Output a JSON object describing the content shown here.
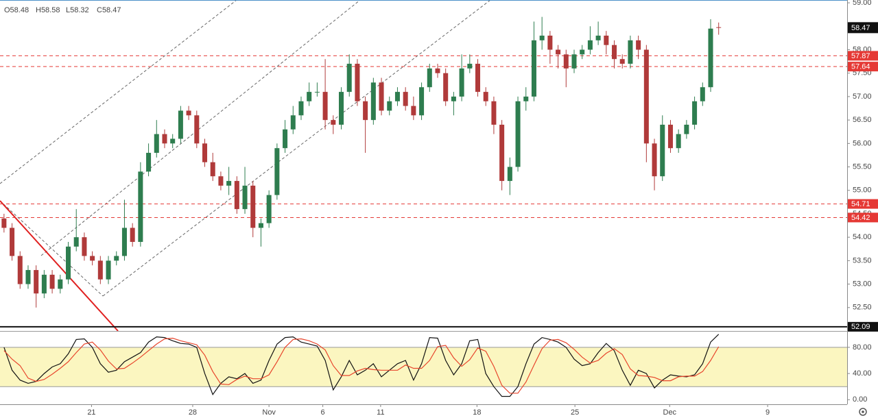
{
  "chart_data": [
    {
      "type": "candlestick",
      "ohlc_header": [
        "O58.48",
        "H58.58",
        "L58.32",
        "C58.47"
      ],
      "up_color": "#2e7d4f",
      "down_color": "#b03a3a",
      "open": [
        54.4,
        54.2,
        53.6,
        53.0,
        53.3,
        52.8,
        53.2,
        52.9,
        53.1,
        53.8,
        54.0,
        53.6,
        53.5,
        53.1,
        53.5,
        53.6,
        54.2,
        53.9,
        55.4,
        55.8,
        56.2,
        56.0,
        56.1,
        56.7,
        56.6,
        56.0,
        55.6,
        55.3,
        55.1,
        55.2,
        54.6,
        55.1,
        54.2,
        54.3,
        54.9,
        55.9,
        56.3,
        56.6,
        56.9,
        57.1,
        57.1,
        56.5,
        56.4,
        57.1,
        57.7,
        56.9,
        56.5,
        57.3,
        56.7,
        56.9,
        57.1,
        56.8,
        56.6,
        57.2,
        57.6,
        57.5,
        56.9,
        57.0,
        57.6,
        57.7,
        57.1,
        56.9,
        56.4,
        55.2,
        55.5,
        56.9,
        57.0,
        58.2,
        58.3,
        58.0,
        57.9,
        57.6,
        57.9,
        58.0,
        58.2,
        58.3,
        58.1,
        57.8,
        57.7,
        58.2,
        58.0,
        56.0,
        55.3,
        56.4,
        55.9,
        56.2,
        56.4,
        56.9,
        57.2,
        58.48
      ],
      "high": [
        54.5,
        54.3,
        53.7,
        53.4,
        53.4,
        53.3,
        53.3,
        53.2,
        53.9,
        54.6,
        54.1,
        53.7,
        53.6,
        53.6,
        53.7,
        54.8,
        54.3,
        55.6,
        56.0,
        56.5,
        56.3,
        56.2,
        56.8,
        56.8,
        56.7,
        56.1,
        55.8,
        55.4,
        55.5,
        55.3,
        55.5,
        55.2,
        54.4,
        55.0,
        56.0,
        56.5,
        56.8,
        57.0,
        57.3,
        57.3,
        57.8,
        56.6,
        57.2,
        57.9,
        57.8,
        57.0,
        57.4,
        57.4,
        57.0,
        57.2,
        57.2,
        57.0,
        57.3,
        57.7,
        57.7,
        57.6,
        57.1,
        57.9,
        57.9,
        57.8,
        57.2,
        57.0,
        56.5,
        55.7,
        57.0,
        57.2,
        58.6,
        58.7,
        58.4,
        58.1,
        58.0,
        58.0,
        58.1,
        58.5,
        58.6,
        58.4,
        58.2,
        57.9,
        58.3,
        58.3,
        58.1,
        56.1,
        56.6,
        56.5,
        56.3,
        56.5,
        57.0,
        57.3,
        58.65,
        58.58
      ],
      "low": [
        54.1,
        53.5,
        52.9,
        52.9,
        52.5,
        52.7,
        52.8,
        52.8,
        53.0,
        53.7,
        53.5,
        53.4,
        53.0,
        53.0,
        53.4,
        53.5,
        53.8,
        53.8,
        55.3,
        55.7,
        55.9,
        55.9,
        56.0,
        56.5,
        55.9,
        55.5,
        55.2,
        55.0,
        54.9,
        54.5,
        54.5,
        54.0,
        53.8,
        54.2,
        54.8,
        55.8,
        56.2,
        56.5,
        56.8,
        57.0,
        56.3,
        56.2,
        56.3,
        57.0,
        56.8,
        55.8,
        56.4,
        56.6,
        56.6,
        56.8,
        56.7,
        56.5,
        56.5,
        57.1,
        57.4,
        56.8,
        56.6,
        56.9,
        57.5,
        57.0,
        56.8,
        56.2,
        55.0,
        54.9,
        55.4,
        56.7,
        56.9,
        58.0,
        57.7,
        57.6,
        57.2,
        57.5,
        57.8,
        57.9,
        58.1,
        57.9,
        57.6,
        57.6,
        57.6,
        57.8,
        55.6,
        55.0,
        55.2,
        55.8,
        55.8,
        56.1,
        56.3,
        56.8,
        57.1,
        58.32
      ],
      "close": [
        54.2,
        53.6,
        53.0,
        53.3,
        52.8,
        53.2,
        52.9,
        53.1,
        53.8,
        54.0,
        53.6,
        53.5,
        53.1,
        53.5,
        53.6,
        54.2,
        53.9,
        55.4,
        55.8,
        56.2,
        56.0,
        56.1,
        56.7,
        56.6,
        56.0,
        55.6,
        55.3,
        55.1,
        55.2,
        54.6,
        55.1,
        54.2,
        54.3,
        54.9,
        55.9,
        56.3,
        56.6,
        56.9,
        57.1,
        57.1,
        56.5,
        56.4,
        57.1,
        57.7,
        56.9,
        56.5,
        57.3,
        56.7,
        56.9,
        57.1,
        56.8,
        56.6,
        57.2,
        57.6,
        57.5,
        56.9,
        57.0,
        57.6,
        57.7,
        57.1,
        56.9,
        56.4,
        55.2,
        55.5,
        56.9,
        57.0,
        58.2,
        58.3,
        58.0,
        57.9,
        57.6,
        57.9,
        58.0,
        58.2,
        58.3,
        58.1,
        57.8,
        57.7,
        58.2,
        58.0,
        56.0,
        55.3,
        56.4,
        55.9,
        56.2,
        56.4,
        56.9,
        57.2,
        58.45,
        58.47
      ],
      "levels": [
        {
          "value": 57.87,
          "color": "#e53935",
          "style": "dashed"
        },
        {
          "value": 57.64,
          "color": "#e53935",
          "style": "dashed"
        },
        {
          "value": 54.71,
          "color": "#e53935",
          "style": "dashed"
        },
        {
          "value": 54.42,
          "color": "#e53935",
          "style": "dashed"
        },
        {
          "value": 52.09,
          "color": "#111111",
          "style": "solid"
        }
      ],
      "xlim": [
        -0.5,
        105
      ],
      "xticks": [
        {
          "value": 10.9,
          "label": "21"
        },
        {
          "value": 23.5,
          "label": "28"
        },
        {
          "value": 33.0,
          "label": "Nov"
        },
        {
          "value": 39.7,
          "label": "6"
        },
        {
          "value": 46.9,
          "label": "11"
        },
        {
          "value": 58.9,
          "label": "18"
        },
        {
          "value": 71.1,
          "label": "25"
        },
        {
          "value": 82.9,
          "label": "Dec"
        },
        {
          "value": 95.1,
          "label": "9"
        }
      ],
      "ylim": [
        52.0,
        59.06
      ],
      "yticks": [
        {
          "value": 52.5,
          "label": "52.50"
        },
        {
          "value": 53,
          "label": "53.00"
        },
        {
          "value": 53.5,
          "label": "53.50"
        },
        {
          "value": 54,
          "label": "54.00"
        },
        {
          "value": 54.5,
          "label": "54.50"
        },
        {
          "value": 55,
          "label": "55.00"
        },
        {
          "value": 55.5,
          "label": "55.50"
        },
        {
          "value": 56,
          "label": "56.00"
        },
        {
          "value": 56.5,
          "label": "56.50"
        },
        {
          "value": 57,
          "label": "57.00"
        },
        {
          "value": 57.5,
          "label": "57.50"
        },
        {
          "value": 58,
          "label": "58.00"
        },
        {
          "value": 58.5,
          "label": "58.50"
        },
        {
          "value": 59,
          "label": "59.00"
        }
      ]
    },
    {
      "type": "line",
      "band": [
        20,
        80
      ],
      "band_color": "#fbf6c0",
      "series": [
        {
          "color": "#111111",
          "values": [
            80,
            45,
            30,
            25,
            28,
            40,
            50,
            55,
            70,
            92,
            93,
            80,
            55,
            42,
            45,
            58,
            65,
            72,
            88,
            96,
            95,
            90,
            86,
            85,
            80,
            40,
            8,
            25,
            35,
            32,
            40,
            25,
            30,
            60,
            85,
            95,
            96,
            88,
            85,
            82,
            60,
            15,
            35,
            60,
            38,
            45,
            55,
            35,
            45,
            55,
            60,
            30,
            55,
            95,
            94,
            60,
            38,
            55,
            90,
            92,
            40,
            20,
            5,
            5,
            20,
            55,
            85,
            95,
            92,
            88,
            80,
            62,
            52,
            55,
            72,
            86,
            75,
            45,
            22,
            45,
            40,
            18,
            30,
            38,
            36,
            35,
            38,
            55,
            88,
            100
          ]
        },
        {
          "color": "#e8452c",
          "values": [
            75,
            62,
            52,
            33,
            28,
            31,
            39,
            48,
            58,
            72,
            85,
            88,
            76,
            59,
            47,
            48,
            56,
            65,
            75,
            85,
            93,
            94,
            90,
            87,
            84,
            68,
            43,
            24,
            23,
            31,
            36,
            32,
            32,
            38,
            58,
            80,
            92,
            93,
            90,
            85,
            76,
            52,
            37,
            37,
            44,
            48,
            46,
            45,
            45,
            45,
            53,
            48,
            48,
            60,
            81,
            83,
            64,
            51,
            61,
            79,
            74,
            51,
            22,
            10,
            10,
            27,
            53,
            78,
            91,
            92,
            87,
            77,
            65,
            56,
            60,
            71,
            78,
            69,
            47,
            37,
            36,
            34,
            29,
            29,
            35,
            36,
            36,
            43,
            60,
            81
          ]
        }
      ],
      "ylim": [
        -7,
        105
      ],
      "yticks": [
        {
          "value": 0,
          "label": "0.00"
        },
        {
          "value": 40,
          "label": "40.00"
        },
        {
          "value": 80,
          "label": "80.00"
        }
      ]
    }
  ]
}
